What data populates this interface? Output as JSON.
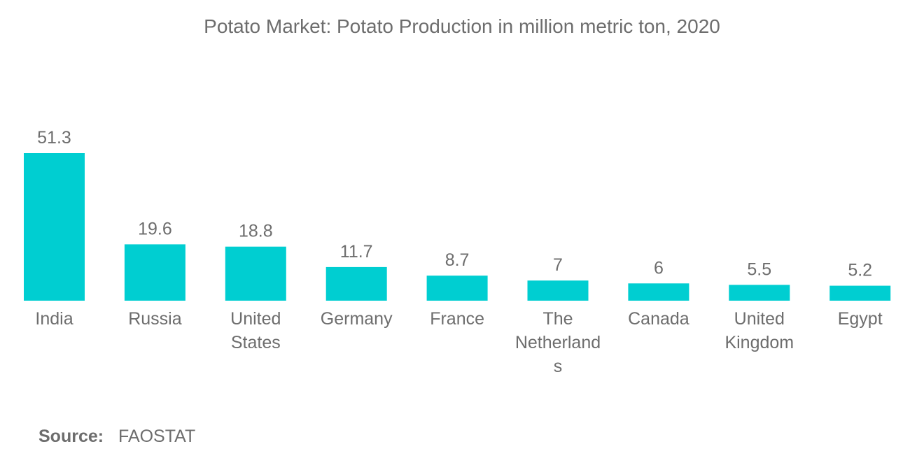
{
  "chart_data": {
    "type": "bar",
    "title": "Potato Market: Potato Production in million metric ton, 2020",
    "categories": [
      "India",
      "Russia",
      "United States",
      "Germany",
      "France",
      "The Netherlands",
      "Canada",
      "United Kingdom",
      "Egypt"
    ],
    "category_lines": [
      [
        "India"
      ],
      [
        "Russia"
      ],
      [
        "United",
        "States"
      ],
      [
        "Germany"
      ],
      [
        "France"
      ],
      [
        "The",
        "Netherland",
        "s"
      ],
      [
        "Canada"
      ],
      [
        "United",
        "Kingdom"
      ],
      [
        "Egypt"
      ]
    ],
    "values": [
      51.3,
      19.6,
      18.8,
      11.7,
      8.7,
      7,
      6,
      5.5,
      5.2
    ],
    "value_labels": [
      "51.3",
      "19.6",
      "18.8",
      "11.7",
      "8.7",
      "7",
      "6",
      "5.5",
      "5.2"
    ],
    "xlabel": "",
    "ylabel": "",
    "ylim": [
      0,
      51.3
    ],
    "grid": false,
    "legend": "none",
    "bar_color": "#00ced1"
  },
  "source": {
    "label": "Source:",
    "value": "FAOSTAT"
  },
  "colors": {
    "text": "#6d6d6d",
    "bar": "#00ced1"
  }
}
